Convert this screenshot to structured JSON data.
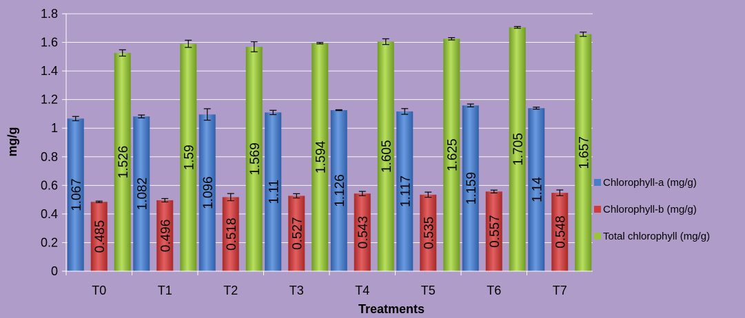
{
  "chart_data": {
    "type": "bar",
    "xlabel": "Treatments",
    "ylabel": "mg/g",
    "ylim": [
      0,
      1.8
    ],
    "yticks": [
      0,
      0.2,
      0.4,
      0.6,
      0.8,
      1,
      1.2,
      1.4,
      1.6,
      1.8
    ],
    "grid": true,
    "legend_position": "right",
    "categories": [
      "T0",
      "T1",
      "T2",
      "T3",
      "T4",
      "T5",
      "T6",
      "T7"
    ],
    "series": [
      {
        "name": "Chlorophyll-a (mg/g)",
        "color": "#4a7cc7",
        "values": [
          1.067,
          1.082,
          1.096,
          1.11,
          1.126,
          1.117,
          1.159,
          1.14
        ],
        "labels": [
          "1.067",
          "1.082",
          "1.096",
          "1.11",
          "1.126",
          "1.117",
          "1.159",
          "1.14"
        ],
        "errors": [
          0.015,
          0.01,
          0.04,
          0.015,
          0.003,
          0.02,
          0.01,
          0.007
        ]
      },
      {
        "name": "Chlorophyll-b (mg/g)",
        "color": "#d03c3c",
        "values": [
          0.485,
          0.496,
          0.518,
          0.527,
          0.543,
          0.535,
          0.557,
          0.548
        ],
        "labels": [
          "0.485",
          "0.496",
          "0.518",
          "0.527",
          "0.543",
          "0.535",
          "0.557",
          "0.548"
        ],
        "errors": [
          0.005,
          0.012,
          0.025,
          0.015,
          0.015,
          0.018,
          0.01,
          0.02
        ]
      },
      {
        "name": "Total chlorophyll (mg/g)",
        "color": "#9bc43e",
        "values": [
          1.526,
          1.59,
          1.569,
          1.594,
          1.605,
          1.625,
          1.705,
          1.657
        ],
        "labels": [
          "1.526",
          "1.59",
          "1.569",
          "1.594",
          "1.605",
          "1.625",
          "1.705",
          "1.657"
        ],
        "errors": [
          0.022,
          0.025,
          0.035,
          0.005,
          0.02,
          0.008,
          0.006,
          0.015
        ]
      }
    ]
  }
}
